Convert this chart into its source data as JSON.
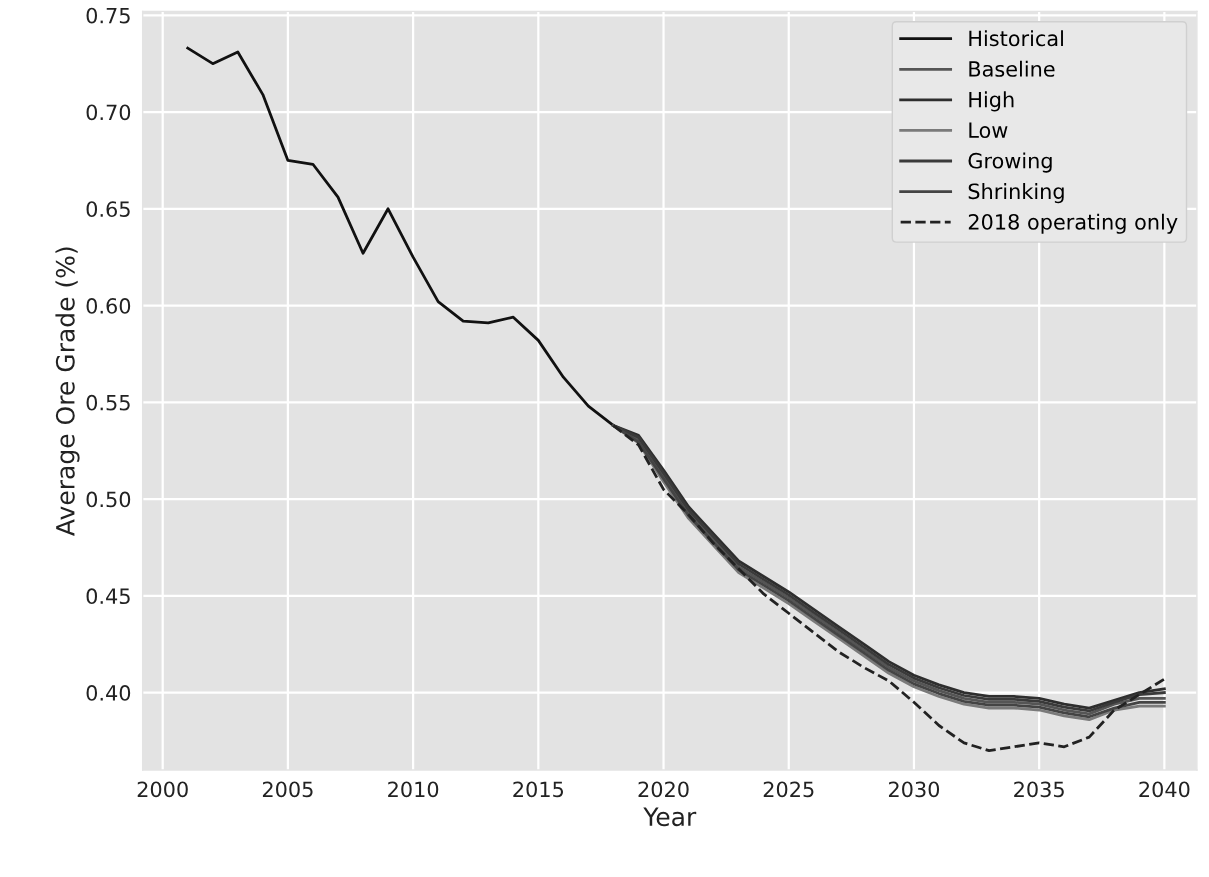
{
  "chart_data": {
    "type": "line",
    "xlabel": "Year",
    "ylabel": "Average Ore Grade (%)",
    "xlim": [
      1999.2,
      2041.3
    ],
    "xticks": [
      2000,
      2005,
      2010,
      2015,
      2020,
      2025,
      2030,
      2035,
      2040
    ],
    "ylim": [
      0.36,
      0.752
    ],
    "yticks": [
      {
        "value": 0.4,
        "label": "0.40"
      },
      {
        "value": 0.45,
        "label": "0.45"
      },
      {
        "value": 0.5,
        "label": "0.50"
      },
      {
        "value": 0.55,
        "label": "0.55"
      },
      {
        "value": 0.6,
        "label": "0.60"
      },
      {
        "value": 0.65,
        "label": "0.65"
      },
      {
        "value": 0.7,
        "label": "0.70"
      },
      {
        "value": 0.75,
        "label": "0.75"
      }
    ],
    "grid": true,
    "legend": "top right",
    "marker": "none",
    "series": [
      {
        "name": "Historical",
        "color": "#111111",
        "line_style": "solid",
        "x": [
          2001,
          2002,
          2003,
          2004,
          2005,
          2006,
          2007,
          2008,
          2009,
          2010,
          2011,
          2012,
          2013,
          2014,
          2015,
          2016,
          2017,
          2018
        ],
        "values": [
          0.733,
          0.725,
          0.731,
          0.709,
          0.675,
          0.673,
          0.656,
          0.627,
          0.65,
          0.625,
          0.602,
          0.592,
          0.591,
          0.594,
          0.582,
          0.563,
          0.548,
          0.538
        ]
      },
      {
        "name": "Baseline",
        "color": "#555555",
        "line_style": "solid",
        "x": [
          2018,
          2019,
          2020,
          2021,
          2022,
          2023,
          2024,
          2025,
          2026,
          2027,
          2028,
          2029,
          2030,
          2031,
          2032,
          2033,
          2034,
          2035,
          2036,
          2037,
          2038,
          2039,
          2040
        ],
        "values": [
          0.538,
          0.531,
          0.512,
          0.493,
          0.479,
          0.465,
          0.457,
          0.449,
          0.44,
          0.431,
          0.422,
          0.413,
          0.406,
          0.401,
          0.397,
          0.395,
          0.395,
          0.394,
          0.391,
          0.389,
          0.394,
          0.397,
          0.397
        ]
      },
      {
        "name": "High",
        "color": "#2e2e2e",
        "line_style": "solid",
        "x": [
          2018,
          2019,
          2020,
          2021,
          2022,
          2023,
          2024,
          2025,
          2026,
          2027,
          2028,
          2029,
          2030,
          2031,
          2032,
          2033,
          2034,
          2035,
          2036,
          2037,
          2038,
          2039,
          2040
        ],
        "values": [
          0.538,
          0.533,
          0.515,
          0.496,
          0.482,
          0.468,
          0.46,
          0.452,
          0.443,
          0.434,
          0.425,
          0.416,
          0.409,
          0.404,
          0.4,
          0.398,
          0.398,
          0.397,
          0.394,
          0.392,
          0.396,
          0.4,
          0.402
        ]
      },
      {
        "name": "Low",
        "color": "#7a7a7a",
        "line_style": "solid",
        "x": [
          2018,
          2019,
          2020,
          2021,
          2022,
          2023,
          2024,
          2025,
          2026,
          2027,
          2028,
          2029,
          2030,
          2031,
          2032,
          2033,
          2034,
          2035,
          2036,
          2037,
          2038,
          2039,
          2040
        ],
        "values": [
          0.538,
          0.529,
          0.509,
          0.49,
          0.476,
          0.462,
          0.454,
          0.446,
          0.437,
          0.428,
          0.419,
          0.41,
          0.403,
          0.398,
          0.394,
          0.392,
          0.392,
          0.391,
          0.388,
          0.386,
          0.391,
          0.393,
          0.393
        ]
      },
      {
        "name": "Growing",
        "color": "#3a3a3a",
        "line_style": "solid",
        "x": [
          2018,
          2019,
          2020,
          2021,
          2022,
          2023,
          2024,
          2025,
          2026,
          2027,
          2028,
          2029,
          2030,
          2031,
          2032,
          2033,
          2034,
          2035,
          2036,
          2037,
          2038,
          2039,
          2040
        ],
        "values": [
          0.538,
          0.532,
          0.5135,
          0.4945,
          0.4805,
          0.4665,
          0.4585,
          0.4505,
          0.4415,
          0.4325,
          0.4235,
          0.4145,
          0.4075,
          0.4025,
          0.3985,
          0.3965,
          0.3965,
          0.3955,
          0.3925,
          0.3905,
          0.395,
          0.399,
          0.4
        ]
      },
      {
        "name": "Shrinking",
        "color": "#444444",
        "line_style": "solid",
        "x": [
          2018,
          2019,
          2020,
          2021,
          2022,
          2023,
          2024,
          2025,
          2026,
          2027,
          2028,
          2029,
          2030,
          2031,
          2032,
          2033,
          2034,
          2035,
          2036,
          2037,
          2038,
          2039,
          2040
        ],
        "values": [
          0.538,
          0.5295,
          0.5105,
          0.4915,
          0.4775,
          0.4635,
          0.4555,
          0.4475,
          0.4385,
          0.4295,
          0.4205,
          0.4115,
          0.4045,
          0.3995,
          0.3955,
          0.3935,
          0.3935,
          0.3925,
          0.3895,
          0.3875,
          0.392,
          0.395,
          0.395
        ]
      },
      {
        "name": "2018 operating only",
        "color": "#222222",
        "line_style": "dashed",
        "x": [
          2018,
          2019,
          2020,
          2021,
          2022,
          2023,
          2024,
          2025,
          2026,
          2027,
          2028,
          2029,
          2030,
          2031,
          2032,
          2033,
          2034,
          2035,
          2036,
          2037,
          2038,
          2039,
          2040
        ],
        "values": [
          0.538,
          0.528,
          0.505,
          0.492,
          0.477,
          0.464,
          0.451,
          0.441,
          0.431,
          0.421,
          0.413,
          0.406,
          0.395,
          0.383,
          0.374,
          0.37,
          0.372,
          0.374,
          0.372,
          0.377,
          0.391,
          0.399,
          0.407
        ]
      }
    ]
  }
}
